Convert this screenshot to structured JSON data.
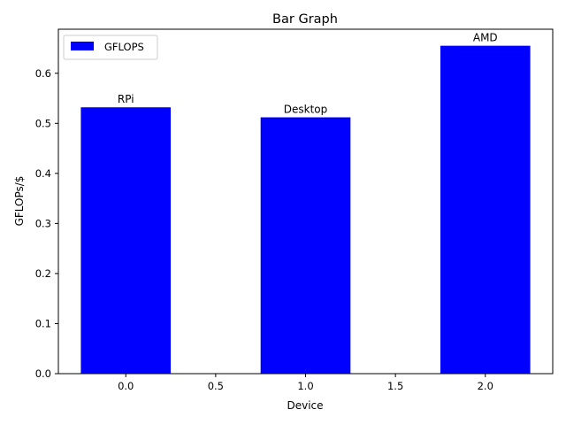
{
  "chart_data": {
    "type": "bar",
    "title": "Bar Graph",
    "xlabel": "Device",
    "ylabel": "GFLOPs/$",
    "x": [
      0,
      1,
      2
    ],
    "values": [
      0.532,
      0.512,
      0.655
    ],
    "bar_labels": [
      "RPi",
      "Desktop",
      "AMD"
    ],
    "bar_width": 0.5,
    "xlim": [
      -0.375,
      2.375
    ],
    "ylim": [
      0,
      0.688
    ],
    "xticks": [
      0.0,
      0.5,
      1.0,
      1.5,
      2.0
    ],
    "xtick_labels": [
      "0.0",
      "0.5",
      "1.0",
      "1.5",
      "2.0"
    ],
    "yticks": [
      0.0,
      0.1,
      0.2,
      0.3,
      0.4,
      0.5,
      0.6
    ],
    "ytick_labels": [
      "0.0",
      "0.1",
      "0.2",
      "0.3",
      "0.4",
      "0.5",
      "0.6"
    ],
    "series": [
      {
        "name": "GFLOPS",
        "values": [
          0.532,
          0.512,
          0.655
        ],
        "color": "#0000ff"
      }
    ],
    "legend": {
      "position": "top-left",
      "entries": [
        "GFLOPS"
      ]
    },
    "grid": false
  }
}
